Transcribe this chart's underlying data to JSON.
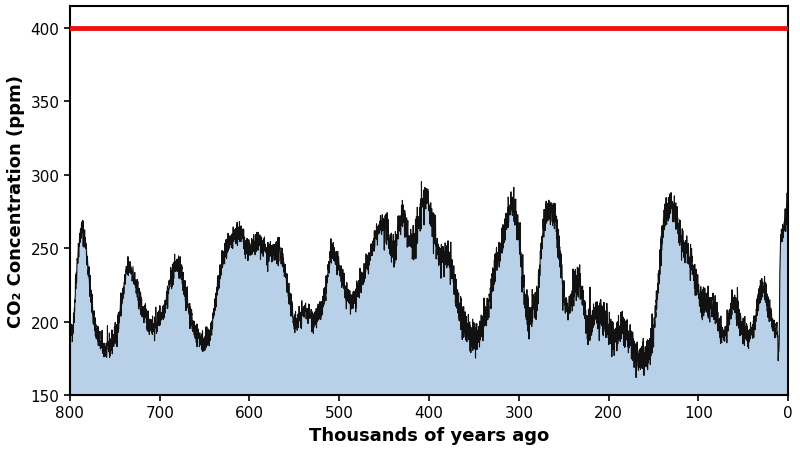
{
  "xlabel": "Thousands of years ago",
  "ylabel": "CO₂ Concentration (ppm)",
  "xlim": [
    800,
    0
  ],
  "ylim": [
    150,
    415
  ],
  "yticks": [
    150,
    200,
    250,
    300,
    350,
    400
  ],
  "xticks": [
    800,
    700,
    600,
    500,
    400,
    300,
    200,
    100,
    0
  ],
  "hline_y": 400,
  "hline_color": "#ee1111",
  "hline_lw": 3.5,
  "fill_color": "#b8d0e8",
  "fill_alpha": 1.0,
  "line_color": "#111111",
  "line_lw": 0.8,
  "vline_color": "#111111",
  "vline_lw": 1.2,
  "background_color": "#ffffff",
  "tick_label_fontsize": 11,
  "axis_label_fontsize": 13,
  "figsize": [
    8.0,
    4.52
  ],
  "dpi": 100
}
